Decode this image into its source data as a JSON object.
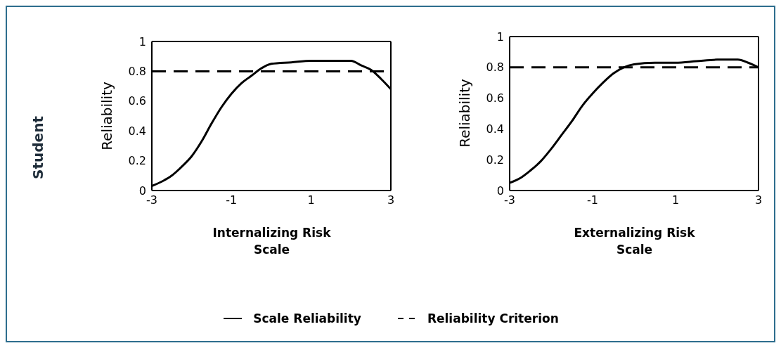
{
  "chart_data": [
    {
      "type": "line",
      "xlabel": "Internalizing Risk Scale",
      "ylabel": "Reliability",
      "annotations": [
        "Student"
      ],
      "xlim": [
        -3,
        3
      ],
      "xticks": [
        -3,
        -1,
        1,
        3
      ],
      "ylim": [
        0,
        1
      ],
      "yticks": [
        0,
        0.2,
        0.4,
        0.6,
        0.8,
        1
      ],
      "grid": false,
      "legend": "bottom",
      "marker": "none",
      "series": [
        {
          "name": "Scale Reliability",
          "color": "#000000",
          "line_style": "solid",
          "x": [
            -3,
            -2.75,
            -2.5,
            -2.25,
            -2,
            -1.75,
            -1.5,
            -1.25,
            -1,
            -0.75,
            -0.5,
            -0.25,
            0,
            0.5,
            1,
            1.5,
            2,
            2.25,
            2.5,
            2.75,
            3
          ],
          "values": [
            0.03,
            0.06,
            0.1,
            0.16,
            0.23,
            0.33,
            0.45,
            0.56,
            0.65,
            0.72,
            0.77,
            0.82,
            0.85,
            0.86,
            0.87,
            0.87,
            0.87,
            0.84,
            0.81,
            0.75,
            0.68
          ]
        },
        {
          "name": "Reliability Criterion",
          "color": "#000000",
          "line_style": "dashed",
          "x": [
            -3,
            3
          ],
          "values": [
            0.8,
            0.8
          ]
        }
      ]
    },
    {
      "type": "line",
      "xlabel": "Externalizing Risk Scale",
      "ylabel": "Reliability",
      "xlim": [
        -3,
        3
      ],
      "xticks": [
        -3,
        -1,
        1,
        3
      ],
      "ylim": [
        0,
        1
      ],
      "yticks": [
        0,
        0.2,
        0.4,
        0.6,
        0.8,
        1
      ],
      "grid": false,
      "marker": "none",
      "series": [
        {
          "color": "#000000",
          "line_style": "solid",
          "x": [
            -3,
            -2.75,
            -2.5,
            -2.25,
            -2,
            -1.75,
            -1.5,
            -1.25,
            -1,
            -0.75,
            -0.5,
            -0.25,
            0,
            0.5,
            1,
            1.5,
            2,
            2.5,
            2.75,
            3
          ],
          "values": [
            0.05,
            0.08,
            0.13,
            0.19,
            0.27,
            0.36,
            0.45,
            0.55,
            0.63,
            0.7,
            0.76,
            0.8,
            0.82,
            0.83,
            0.83,
            0.84,
            0.85,
            0.85,
            0.83,
            0.8
          ]
        },
        {
          "color": "#000000",
          "line_style": "dashed",
          "x": [
            -3,
            3
          ],
          "values": [
            0.8,
            0.8
          ]
        }
      ]
    }
  ]
}
